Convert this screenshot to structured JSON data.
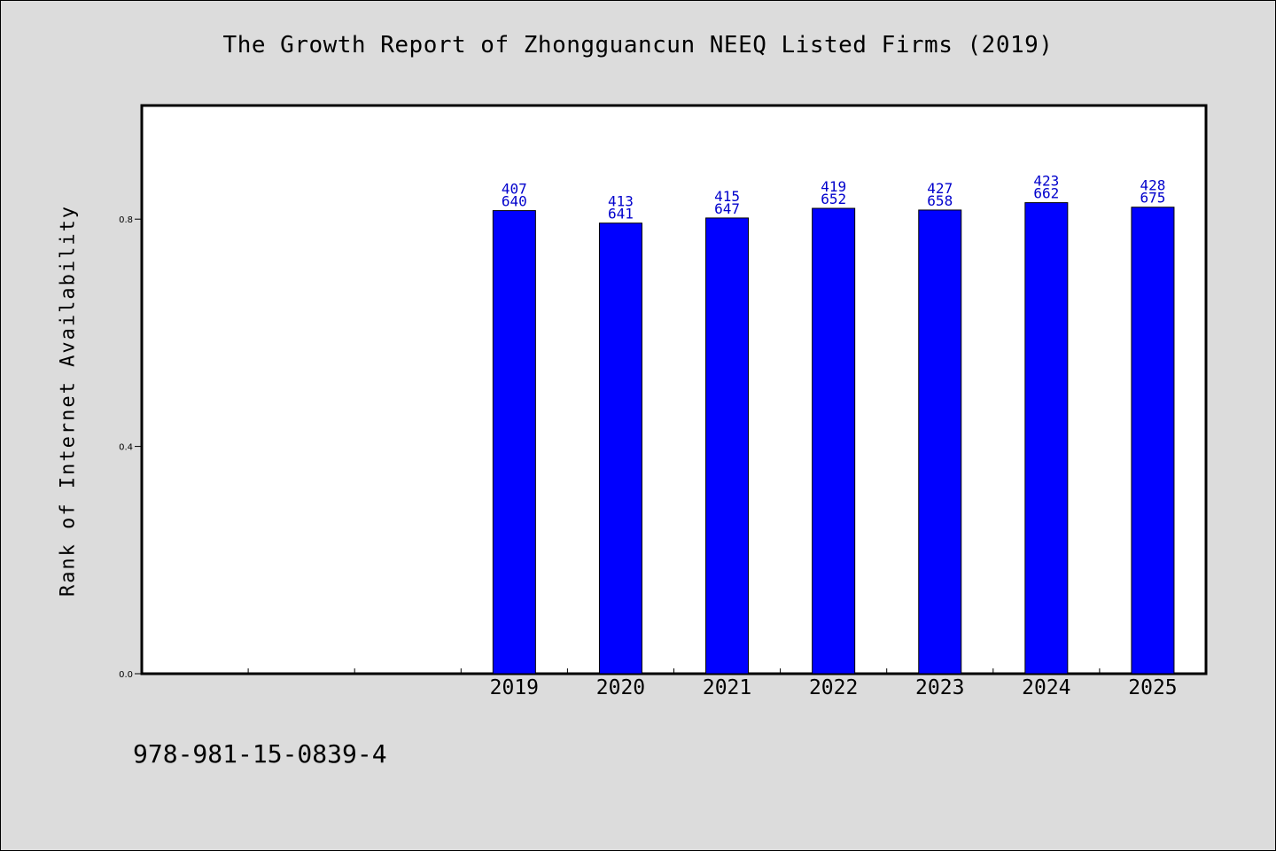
{
  "chart_data": {
    "type": "bar",
    "title": "The Growth Report of Zhongguancun NEEQ Listed Firms (2019)",
    "ylabel": "Rank of Internet Availability",
    "xlabel": "",
    "footer": "978-981-15-0839-4",
    "categories": [
      "",
      "",
      "",
      "2019",
      "2020",
      "2021",
      "2022",
      "2023",
      "2024",
      "2025"
    ],
    "values": [
      null,
      null,
      null,
      0.815,
      0.793,
      0.802,
      0.819,
      0.816,
      0.829,
      0.821
    ],
    "data_labels": [
      null,
      null,
      null,
      [
        "407",
        "640"
      ],
      [
        "413",
        "641"
      ],
      [
        "415",
        "647"
      ],
      [
        "419",
        "652"
      ],
      [
        "427",
        "658"
      ],
      [
        "423",
        "662"
      ],
      [
        "428",
        "675"
      ]
    ],
    "ylim": [
      0,
      1.0
    ],
    "yticks": [
      0.0,
      0.4,
      0.8
    ],
    "ytick_labels": [
      "0.0",
      "0.4",
      "0.8"
    ],
    "grid": false,
    "colors": {
      "bar": "#0000ff",
      "data_label": "#0000cc",
      "background": "#dcdcdc"
    }
  }
}
